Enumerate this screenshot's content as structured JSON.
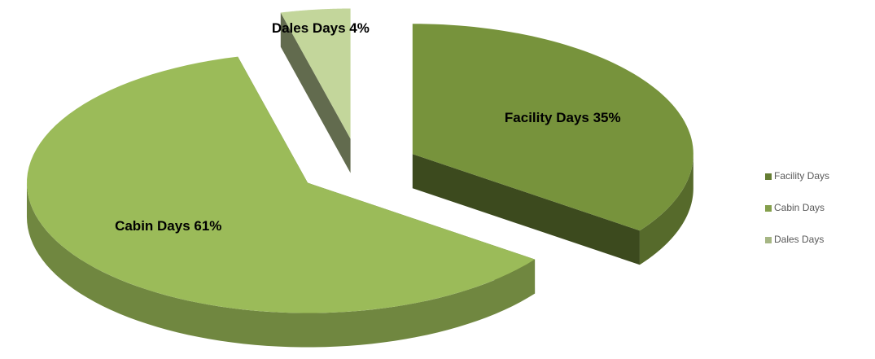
{
  "chart_data": {
    "type": "pie",
    "categories": [
      "Facility Days",
      "Cabin Days",
      "Dales Days"
    ],
    "values": [
      35,
      61,
      4
    ],
    "value_labels": [
      "Facility Days 35%",
      "Cabin Days 61%",
      "Dales Days 4%"
    ],
    "colors": [
      "#77933c",
      "#9bbb59",
      "#c3d69b"
    ],
    "legend": "right"
  }
}
